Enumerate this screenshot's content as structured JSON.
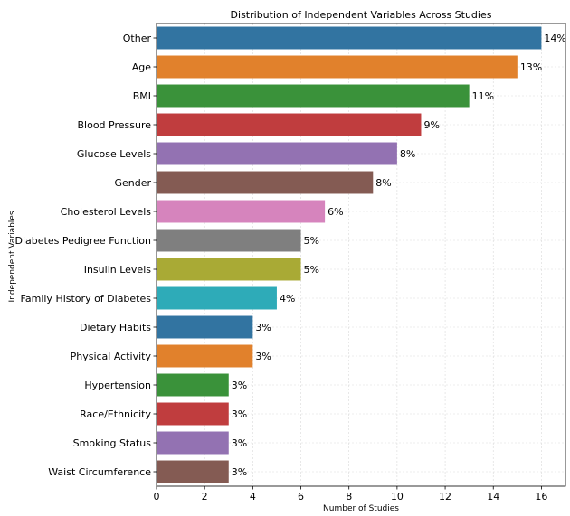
{
  "chart_data": {
    "type": "bar",
    "orientation": "horizontal",
    "title": "Distribution of Independent Variables Across Studies",
    "xlabel": "Number of Studies",
    "ylabel": "Independent Variables",
    "xlim": [
      0,
      17
    ],
    "xticks": [
      0,
      2,
      4,
      6,
      8,
      10,
      12,
      14,
      16
    ],
    "grid": true,
    "categories": [
      "Other",
      "Age",
      "BMI",
      "Blood Pressure",
      "Glucose Levels",
      "Gender",
      "Cholesterol Levels",
      "Diabetes Pedigree Function",
      "Insulin Levels",
      "Family History of Diabetes",
      "Dietary Habits",
      "Physical Activity",
      "Hypertension",
      "Race/Ethnicity",
      "Smoking Status",
      "Waist Circumference"
    ],
    "values": [
      16,
      15,
      13,
      11,
      10,
      9,
      7,
      6,
      6,
      5,
      4,
      4,
      3,
      3,
      3,
      3
    ],
    "data_labels": [
      "14%",
      "13%",
      "11%",
      "9%",
      "8%",
      "8%",
      "6%",
      "5%",
      "5%",
      "4%",
      "3%",
      "3%",
      "3%",
      "3%",
      "3%",
      "3%"
    ],
    "colors": [
      "#3274a1",
      "#e1812c",
      "#3a923a",
      "#c03d3e",
      "#9372b2",
      "#845b53",
      "#d684bd",
      "#7f7f7f",
      "#a9aa35",
      "#2eabb8",
      "#3274a1",
      "#e1812c",
      "#3a923a",
      "#c03d3e",
      "#9372b2",
      "#845b53"
    ]
  }
}
